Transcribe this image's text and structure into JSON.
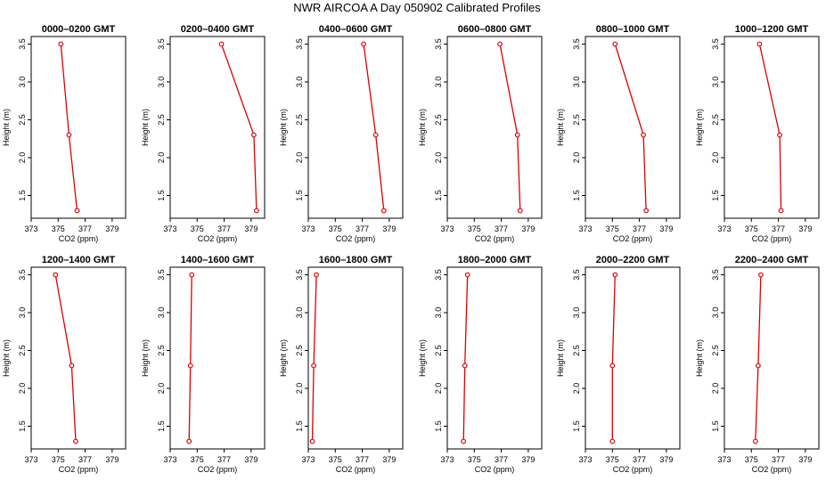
{
  "title": "NWR AIRCOA A  Day 050902  Calibrated Profiles",
  "colors": {
    "line": "#dd0000",
    "axis": "#000000"
  },
  "chart_data": [
    {
      "type": "line",
      "title": "0000–0200 GMT",
      "xlabel": "CO2 (ppm)",
      "ylabel": "Height (m)",
      "xlim": [
        373,
        380
      ],
      "ylim": [
        1.2,
        3.6
      ],
      "xticks": [
        373,
        375,
        377,
        379
      ],
      "yticks": [
        1.5,
        2.0,
        2.5,
        3.0,
        3.5
      ],
      "points": [
        [
          375.2,
          3.5
        ],
        [
          375.8,
          2.3
        ],
        [
          376.4,
          1.3
        ]
      ]
    },
    {
      "type": "line",
      "title": "0200–0400 GMT",
      "xlabel": "CO2 (ppm)",
      "ylabel": "Height (m)",
      "xlim": [
        373,
        380
      ],
      "ylim": [
        1.2,
        3.6
      ],
      "xticks": [
        373,
        375,
        377,
        379
      ],
      "yticks": [
        1.5,
        2.0,
        2.5,
        3.0,
        3.5
      ],
      "points": [
        [
          376.8,
          3.5
        ],
        [
          379.2,
          2.3
        ],
        [
          379.4,
          1.3
        ]
      ]
    },
    {
      "type": "line",
      "title": "0400–0600 GMT",
      "xlabel": "CO2 (ppm)",
      "ylabel": "Height (m)",
      "xlim": [
        373,
        380
      ],
      "ylim": [
        1.2,
        3.6
      ],
      "xticks": [
        373,
        375,
        377,
        379
      ],
      "yticks": [
        1.5,
        2.0,
        2.5,
        3.0,
        3.5
      ],
      "points": [
        [
          377.1,
          3.5
        ],
        [
          378.0,
          2.3
        ],
        [
          378.6,
          1.3
        ]
      ]
    },
    {
      "type": "line",
      "title": "0600–0800 GMT",
      "xlabel": "CO2 (ppm)",
      "ylabel": "Height (m)",
      "xlim": [
        373,
        380
      ],
      "ylim": [
        1.2,
        3.6
      ],
      "xticks": [
        373,
        375,
        377,
        379
      ],
      "yticks": [
        1.5,
        2.0,
        2.5,
        3.0,
        3.5
      ],
      "points": [
        [
          376.9,
          3.5
        ],
        [
          378.2,
          2.3
        ],
        [
          378.4,
          1.3
        ]
      ]
    },
    {
      "type": "line",
      "title": "0800–1000 GMT",
      "xlabel": "CO2 (ppm)",
      "ylabel": "Height (m)",
      "xlim": [
        373,
        380
      ],
      "ylim": [
        1.2,
        3.6
      ],
      "xticks": [
        373,
        375,
        377,
        379
      ],
      "yticks": [
        1.5,
        2.0,
        2.5,
        3.0,
        3.5
      ],
      "points": [
        [
          375.2,
          3.5
        ],
        [
          377.3,
          2.3
        ],
        [
          377.5,
          1.3
        ]
      ]
    },
    {
      "type": "line",
      "title": "1000–1200 GMT",
      "xlabel": "CO2 (ppm)",
      "ylabel": "Height (m)",
      "xlim": [
        373,
        380
      ],
      "ylim": [
        1.2,
        3.6
      ],
      "xticks": [
        373,
        375,
        377,
        379
      ],
      "yticks": [
        1.5,
        2.0,
        2.5,
        3.0,
        3.5
      ],
      "points": [
        [
          375.6,
          3.5
        ],
        [
          377.1,
          2.3
        ],
        [
          377.2,
          1.3
        ]
      ]
    },
    {
      "type": "line",
      "title": "1200–1400 GMT",
      "xlabel": "CO2 (ppm)",
      "ylabel": "Height (m)",
      "xlim": [
        373,
        380
      ],
      "ylim": [
        1.2,
        3.6
      ],
      "xticks": [
        373,
        375,
        377,
        379
      ],
      "yticks": [
        1.5,
        2.0,
        2.5,
        3.0,
        3.5
      ],
      "points": [
        [
          374.8,
          3.5
        ],
        [
          376.0,
          2.3
        ],
        [
          376.3,
          1.3
        ]
      ]
    },
    {
      "type": "line",
      "title": "1400–1600 GMT",
      "xlabel": "CO2 (ppm)",
      "ylabel": "Height (m)",
      "xlim": [
        373,
        380
      ],
      "ylim": [
        1.2,
        3.6
      ],
      "xticks": [
        373,
        375,
        377,
        379
      ],
      "yticks": [
        1.5,
        2.0,
        2.5,
        3.0,
        3.5
      ],
      "points": [
        [
          374.6,
          3.5
        ],
        [
          374.5,
          2.3
        ],
        [
          374.4,
          1.3
        ]
      ]
    },
    {
      "type": "line",
      "title": "1600–1800 GMT",
      "xlabel": "CO2 (ppm)",
      "ylabel": "Height (m)",
      "xlim": [
        373,
        380
      ],
      "ylim": [
        1.2,
        3.6
      ],
      "xticks": [
        373,
        375,
        377,
        379
      ],
      "yticks": [
        1.5,
        2.0,
        2.5,
        3.0,
        3.5
      ],
      "points": [
        [
          373.6,
          3.5
        ],
        [
          373.4,
          2.3
        ],
        [
          373.3,
          1.3
        ]
      ]
    },
    {
      "type": "line",
      "title": "1800–2000 GMT",
      "xlabel": "CO2 (ppm)",
      "ylabel": "Height (m)",
      "xlim": [
        373,
        380
      ],
      "ylim": [
        1.2,
        3.6
      ],
      "xticks": [
        373,
        375,
        377,
        379
      ],
      "yticks": [
        1.5,
        2.0,
        2.5,
        3.0,
        3.5
      ],
      "points": [
        [
          374.5,
          3.5
        ],
        [
          374.3,
          2.3
        ],
        [
          374.2,
          1.3
        ]
      ]
    },
    {
      "type": "line",
      "title": "2000–2200 GMT",
      "xlabel": "CO2 (ppm)",
      "ylabel": "Height (m)",
      "xlim": [
        373,
        380
      ],
      "ylim": [
        1.2,
        3.6
      ],
      "xticks": [
        373,
        375,
        377,
        379
      ],
      "yticks": [
        1.5,
        2.0,
        2.5,
        3.0,
        3.5
      ],
      "points": [
        [
          375.2,
          3.5
        ],
        [
          375.0,
          2.3
        ],
        [
          375.0,
          1.3
        ]
      ]
    },
    {
      "type": "line",
      "title": "2200–2400 GMT",
      "xlabel": "CO2 (ppm)",
      "ylabel": "Height (m)",
      "xlim": [
        373,
        380
      ],
      "ylim": [
        1.2,
        3.6
      ],
      "xticks": [
        373,
        375,
        377,
        379
      ],
      "yticks": [
        1.5,
        2.0,
        2.5,
        3.0,
        3.5
      ],
      "points": [
        [
          375.7,
          3.5
        ],
        [
          375.5,
          2.3
        ],
        [
          375.3,
          1.3
        ]
      ]
    }
  ]
}
